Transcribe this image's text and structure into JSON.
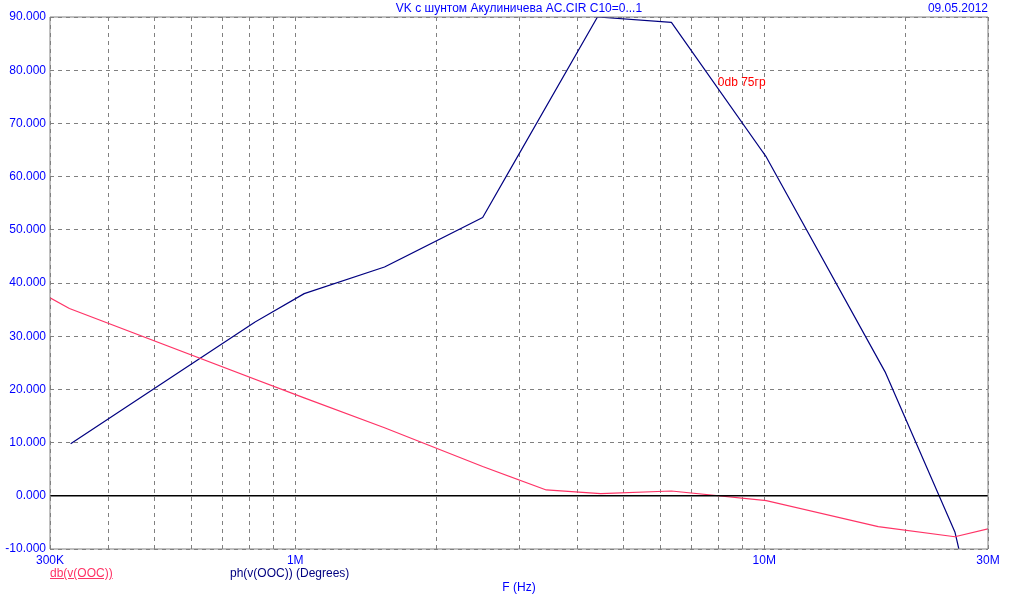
{
  "chart_data": {
    "type": "line",
    "title": "VK с шунтом  Акулиничева AC.CIR C10=0...1",
    "xlabel": "F (Hz)",
    "log": "x",
    "grid": true,
    "legend": "bottom left",
    "marker": "none",
    "line_style": "solid",
    "xlim": [
      300000,
      30000000
    ],
    "xticks": [
      {
        "value": 300000,
        "label": "300K"
      },
      {
        "value": 400000,
        "label": null
      },
      {
        "value": 500000,
        "label": null
      },
      {
        "value": 600000,
        "label": null
      },
      {
        "value": 700000,
        "label": null
      },
      {
        "value": 800000,
        "label": null
      },
      {
        "value": 900000,
        "label": null
      },
      {
        "value": 1000000,
        "label": "1M"
      },
      {
        "value": 2000000,
        "label": null
      },
      {
        "value": 3000000,
        "label": null
      },
      {
        "value": 4000000,
        "label": null
      },
      {
        "value": 5000000,
        "label": null
      },
      {
        "value": 6000000,
        "label": null
      },
      {
        "value": 7000000,
        "label": null
      },
      {
        "value": 8000000,
        "label": null
      },
      {
        "value": 9000000,
        "label": null
      },
      {
        "value": 10000000,
        "label": "10M"
      },
      {
        "value": 20000000,
        "label": null
      },
      {
        "value": 30000000,
        "label": "30M"
      }
    ],
    "ylim": [
      -10,
      90
    ],
    "yticks": [
      {
        "value": -10,
        "label": "-10.000"
      },
      {
        "value": 0,
        "label": "0.000"
      },
      {
        "value": 10,
        "label": "10.000"
      },
      {
        "value": 20,
        "label": "20.000"
      },
      {
        "value": 30,
        "label": "30.000"
      },
      {
        "value": 40,
        "label": "40.000"
      },
      {
        "value": 50,
        "label": "50.000"
      },
      {
        "value": 60,
        "label": "60.000"
      },
      {
        "value": 70,
        "label": "70.000"
      },
      {
        "value": 80,
        "label": "80.000"
      },
      {
        "value": 90,
        "label": "90.000"
      }
    ],
    "series": [
      {
        "name": "db(v(OOC))",
        "color": "#ff3366",
        "x": [
          300000,
          330000,
          1045000,
          1550000,
          2510000,
          3430000,
          4480000,
          6340000,
          10100000,
          17500000,
          25500000,
          30000000
        ],
        "values": [
          37.2,
          35.2,
          18.4,
          12.8,
          5.5,
          1.1,
          0.4,
          0.9,
          -0.9,
          -5.8,
          -7.7,
          -6.2
        ]
      },
      {
        "name": "ph(v(OOC)) (Degrees)",
        "color": "#000080",
        "x": [
          332000,
          815000,
          1045000,
          1550000,
          2510000,
          4410000,
          6340000,
          10100000,
          18100000,
          25500000,
          26000000
        ],
        "values": [
          9.8,
          32.5,
          38.0,
          43.0,
          52.3,
          90.0,
          89.0,
          63.7,
          23.3,
          -6.8,
          -10
        ]
      }
    ],
    "ref_lines": [
      {
        "axis": "y",
        "value": 0,
        "color": "#000000",
        "line_style": "solid"
      }
    ],
    "annotations": [
      "0db 75гр",
      "09.05.2012"
    ]
  }
}
